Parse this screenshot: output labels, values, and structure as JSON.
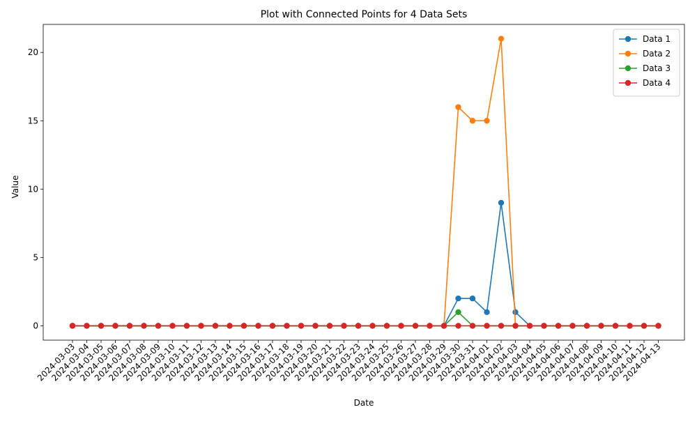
{
  "chart_data": {
    "type": "line",
    "title": "Plot with Connected Points for 4 Data Sets",
    "xlabel": "Date",
    "ylabel": "Value",
    "ylim": [
      -1.05,
      22.05
    ],
    "yticks": [
      0,
      5,
      10,
      15,
      20
    ],
    "grid": false,
    "legend_position": "top-right",
    "x": [
      "2024-03-03",
      "2024-03-04",
      "2024-03-05",
      "2024-03-06",
      "2024-03-07",
      "2024-03-08",
      "2024-03-09",
      "2024-03-10",
      "2024-03-11",
      "2024-03-12",
      "2024-03-13",
      "2024-03-14",
      "2024-03-15",
      "2024-03-16",
      "2024-03-17",
      "2024-03-18",
      "2024-03-19",
      "2024-03-20",
      "2024-03-21",
      "2024-03-22",
      "2024-03-23",
      "2024-03-24",
      "2024-03-25",
      "2024-03-26",
      "2024-03-27",
      "2024-03-28",
      "2024-03-29",
      "2024-03-30",
      "2024-03-31",
      "2024-04-01",
      "2024-04-02",
      "2024-04-03",
      "2024-04-04",
      "2024-04-05",
      "2024-04-06",
      "2024-04-07",
      "2024-04-08",
      "2024-04-09",
      "2024-04-10",
      "2024-04-11",
      "2024-04-12",
      "2024-04-13"
    ],
    "series": [
      {
        "name": "Data 1",
        "color": "#1f77b4",
        "values": [
          0,
          0,
          0,
          0,
          0,
          0,
          0,
          0,
          0,
          0,
          0,
          0,
          0,
          0,
          0,
          0,
          0,
          0,
          0,
          0,
          0,
          0,
          0,
          0,
          0,
          0,
          0,
          2,
          2,
          1,
          9,
          1,
          0,
          0,
          0,
          0,
          0,
          0,
          0,
          0,
          0,
          0
        ]
      },
      {
        "name": "Data 2",
        "color": "#ff7f0e",
        "values": [
          0,
          0,
          0,
          0,
          0,
          0,
          0,
          0,
          0,
          0,
          0,
          0,
          0,
          0,
          0,
          0,
          0,
          0,
          0,
          0,
          0,
          0,
          0,
          0,
          0,
          0,
          0,
          16,
          15,
          15,
          21,
          0,
          0,
          0,
          0,
          0,
          0,
          0,
          0,
          0,
          0,
          0
        ]
      },
      {
        "name": "Data 3",
        "color": "#2ca02c",
        "values": [
          0,
          0,
          0,
          0,
          0,
          0,
          0,
          0,
          0,
          0,
          0,
          0,
          0,
          0,
          0,
          0,
          0,
          0,
          0,
          0,
          0,
          0,
          0,
          0,
          0,
          0,
          0,
          1,
          0,
          0,
          0,
          0,
          0,
          0,
          0,
          0,
          0,
          0,
          0,
          0,
          0,
          0
        ]
      },
      {
        "name": "Data 4",
        "color": "#d62728",
        "values": [
          0,
          0,
          0,
          0,
          0,
          0,
          0,
          0,
          0,
          0,
          0,
          0,
          0,
          0,
          0,
          0,
          0,
          0,
          0,
          0,
          0,
          0,
          0,
          0,
          0,
          0,
          0,
          0,
          0,
          0,
          0,
          0,
          0,
          0,
          0,
          0,
          0,
          0,
          0,
          0,
          0,
          0
        ]
      }
    ]
  }
}
